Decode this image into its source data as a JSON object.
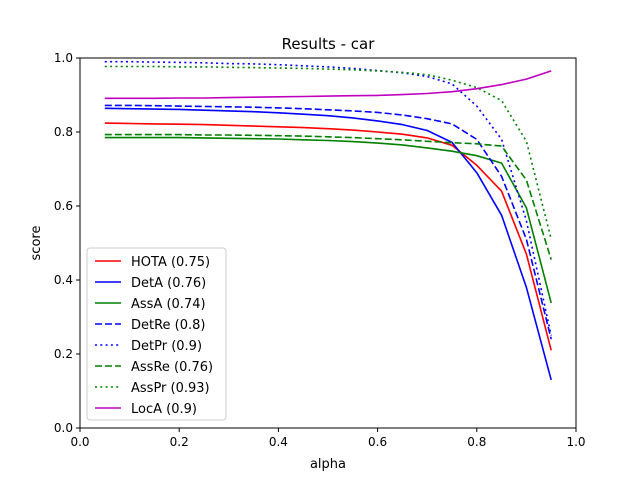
{
  "chart_data": {
    "type": "line",
    "title": "Results - car",
    "xlabel": "alpha",
    "ylabel": "score",
    "xlim": [
      0.0,
      1.0
    ],
    "ylim": [
      0.0,
      1.0
    ],
    "xticks": [
      "0.0",
      "0.2",
      "0.4",
      "0.6",
      "0.8",
      "1.0"
    ],
    "yticks": [
      "0.0",
      "0.2",
      "0.4",
      "0.6",
      "0.8",
      "1.0"
    ],
    "grid": false,
    "legend_position": "lower-left",
    "x": [
      0.05,
      0.1,
      0.15,
      0.2,
      0.25,
      0.3,
      0.35,
      0.4,
      0.45,
      0.5,
      0.55,
      0.6,
      0.65,
      0.7,
      0.75,
      0.8,
      0.85,
      0.9,
      0.95
    ],
    "series": [
      {
        "name": "HOTA (0.75)",
        "color": "#ff0000",
        "dash": "solid",
        "values": [
          0.824,
          0.823,
          0.822,
          0.821,
          0.82,
          0.818,
          0.816,
          0.814,
          0.812,
          0.809,
          0.805,
          0.8,
          0.794,
          0.784,
          0.764,
          0.71,
          0.64,
          0.47,
          0.21
        ]
      },
      {
        "name": "DetA (0.76)",
        "color": "#0000ff",
        "dash": "solid",
        "values": [
          0.864,
          0.863,
          0.862,
          0.861,
          0.859,
          0.857,
          0.855,
          0.852,
          0.848,
          0.844,
          0.838,
          0.83,
          0.82,
          0.804,
          0.772,
          0.69,
          0.575,
          0.38,
          0.13
        ]
      },
      {
        "name": "AssA (0.74)",
        "color": "#008000",
        "dash": "solid",
        "values": [
          0.785,
          0.785,
          0.785,
          0.785,
          0.784,
          0.783,
          0.782,
          0.781,
          0.779,
          0.777,
          0.774,
          0.77,
          0.765,
          0.757,
          0.748,
          0.736,
          0.716,
          0.595,
          0.338
        ]
      },
      {
        "name": "DetRe (0.8)",
        "color": "#0000ff",
        "dash": "dashed",
        "values": [
          0.872,
          0.872,
          0.871,
          0.87,
          0.869,
          0.868,
          0.867,
          0.865,
          0.863,
          0.86,
          0.857,
          0.853,
          0.846,
          0.836,
          0.822,
          0.78,
          0.68,
          0.51,
          0.24
        ]
      },
      {
        "name": "DetPr (0.9)",
        "color": "#0000ff",
        "dash": "dotted",
        "values": [
          0.99,
          0.99,
          0.989,
          0.988,
          0.987,
          0.985,
          0.984,
          0.982,
          0.979,
          0.976,
          0.972,
          0.966,
          0.96,
          0.95,
          0.93,
          0.87,
          0.78,
          0.56,
          0.25
        ]
      },
      {
        "name": "AssRe (0.76)",
        "color": "#008000",
        "dash": "dashed",
        "values": [
          0.793,
          0.793,
          0.793,
          0.793,
          0.792,
          0.792,
          0.791,
          0.79,
          0.789,
          0.787,
          0.785,
          0.782,
          0.779,
          0.775,
          0.771,
          0.768,
          0.762,
          0.67,
          0.455
        ]
      },
      {
        "name": "AssPr (0.93)",
        "color": "#008000",
        "dash": "dotted",
        "values": [
          0.977,
          0.977,
          0.977,
          0.976,
          0.976,
          0.975,
          0.974,
          0.973,
          0.972,
          0.97,
          0.968,
          0.965,
          0.961,
          0.955,
          0.94,
          0.92,
          0.885,
          0.775,
          0.51
        ]
      },
      {
        "name": "LocA (0.9)",
        "color": "#bf00bf",
        "dash": "solid",
        "values": [
          0.891,
          0.891,
          0.891,
          0.892,
          0.892,
          0.893,
          0.894,
          0.895,
          0.896,
          0.897,
          0.898,
          0.899,
          0.901,
          0.904,
          0.909,
          0.917,
          0.928,
          0.943,
          0.965
        ]
      }
    ]
  }
}
